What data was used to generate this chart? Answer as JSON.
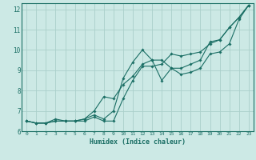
{
  "xlabel": "Humidex (Indice chaleur)",
  "xlim": [
    -0.5,
    23.5
  ],
  "ylim": [
    6,
    12.3
  ],
  "yticks": [
    6,
    7,
    8,
    9,
    10,
    11,
    12
  ],
  "xticks": [
    0,
    1,
    2,
    3,
    4,
    5,
    6,
    7,
    8,
    9,
    10,
    11,
    12,
    13,
    14,
    15,
    16,
    17,
    18,
    19,
    20,
    21,
    22,
    23
  ],
  "bg_color": "#cce9e5",
  "grid_color": "#aacfca",
  "line_color": "#1a6e64",
  "series": [
    {
      "x": [
        0,
        1,
        2,
        3,
        4,
        5,
        6,
        7,
        8,
        9,
        10,
        11,
        12,
        13,
        14,
        15,
        16,
        17,
        18,
        19,
        20,
        21,
        22,
        23
      ],
      "y": [
        6.5,
        6.4,
        6.4,
        6.6,
        6.5,
        6.5,
        6.6,
        6.8,
        6.6,
        7.0,
        8.6,
        9.4,
        10.0,
        9.5,
        8.5,
        9.1,
        9.1,
        9.3,
        9.5,
        10.4,
        10.5,
        11.1,
        11.6,
        12.2
      ]
    },
    {
      "x": [
        0,
        1,
        2,
        3,
        4,
        5,
        6,
        7,
        8,
        9,
        10,
        11,
        12,
        13,
        14,
        15,
        16,
        17,
        18,
        19,
        20,
        21,
        22,
        23
      ],
      "y": [
        6.5,
        6.4,
        6.4,
        6.5,
        6.5,
        6.5,
        6.5,
        6.7,
        6.5,
        6.5,
        7.6,
        8.5,
        9.2,
        9.2,
        9.3,
        9.8,
        9.7,
        9.8,
        9.9,
        10.3,
        10.5,
        11.1,
        11.6,
        12.2
      ]
    },
    {
      "x": [
        0,
        1,
        2,
        3,
        4,
        5,
        6,
        7,
        8,
        9,
        10,
        11,
        12,
        13,
        14,
        15,
        16,
        17,
        18,
        19,
        20,
        21,
        22,
        23
      ],
      "y": [
        6.5,
        6.4,
        6.4,
        6.5,
        6.5,
        6.5,
        6.6,
        7.0,
        7.7,
        7.6,
        8.3,
        8.7,
        9.3,
        9.5,
        9.5,
        9.1,
        8.8,
        8.9,
        9.1,
        9.8,
        9.9,
        10.3,
        11.5,
        12.2
      ]
    }
  ]
}
